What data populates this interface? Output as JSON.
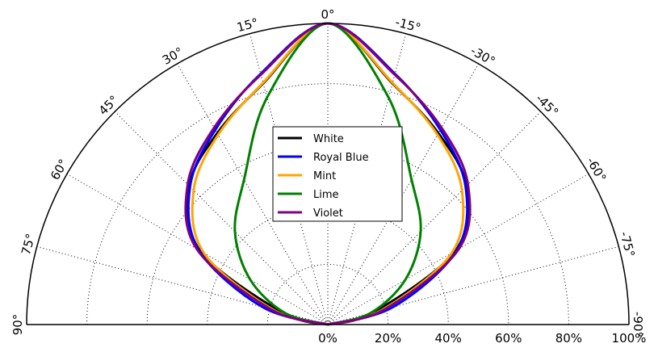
{
  "chart_data": {
    "type": "line",
    "subtype": "polar-half",
    "title": "",
    "angle_unit": "deg",
    "radius_unit": "percent",
    "rlim": [
      0,
      100
    ],
    "theta_range": [
      -90,
      90
    ],
    "grid": true,
    "legend_position": "center",
    "angle_ticks": [
      {
        "value": -90,
        "label": "-90°"
      },
      {
        "value": -75,
        "label": "-75°"
      },
      {
        "value": -60,
        "label": "-60°"
      },
      {
        "value": -45,
        "label": "-45°"
      },
      {
        "value": -30,
        "label": "-30°"
      },
      {
        "value": -15,
        "label": "-15°"
      },
      {
        "value": 0,
        "label": "0°"
      },
      {
        "value": 15,
        "label": "15°"
      },
      {
        "value": 30,
        "label": "30°"
      },
      {
        "value": 45,
        "label": "45°"
      },
      {
        "value": 60,
        "label": "60°"
      },
      {
        "value": 75,
        "label": "75°"
      },
      {
        "value": 90,
        "label": "90°"
      }
    ],
    "radial_ticks": [
      {
        "value": 0,
        "label": "0%"
      },
      {
        "value": 20,
        "label": "20%"
      },
      {
        "value": 40,
        "label": "40%"
      },
      {
        "value": 60,
        "label": "60%"
      },
      {
        "value": 80,
        "label": "80%"
      },
      {
        "value": 100,
        "label": "100%"
      }
    ],
    "angles": [
      -90,
      -75,
      -60,
      -45,
      -30,
      -15,
      0,
      15,
      30,
      45,
      60,
      75,
      90
    ],
    "series": [
      {
        "name": "White",
        "color": "#000000",
        "values": [
          0,
          15.8,
          48.9,
          65.0,
          73.4,
          82.9,
          100,
          82.9,
          73.4,
          65.0,
          48.9,
          15.8,
          0
        ]
      },
      {
        "name": "Royal Blue",
        "color": "#0000ff",
        "values": [
          0,
          22.4,
          49.5,
          64.7,
          74.7,
          86.2,
          100,
          86.2,
          74.7,
          64.7,
          49.5,
          22.4,
          0
        ]
      },
      {
        "name": "Mint",
        "color": "#ffa500",
        "values": [
          0,
          18.5,
          47.5,
          63.0,
          72.8,
          83.1,
          100,
          83.1,
          72.8,
          63.0,
          47.5,
          18.5,
          0
        ]
      },
      {
        "name": "Lime",
        "color": "#008000",
        "values": [
          0,
          14.6,
          29.7,
          43.6,
          55.6,
          78.0,
          100,
          78.0,
          55.6,
          43.6,
          29.7,
          14.6,
          0
        ]
      },
      {
        "name": "Violet",
        "color": "#800080",
        "values": [
          0,
          19.6,
          50.3,
          65.8,
          75.5,
          85.9,
          100,
          85.9,
          75.5,
          65.8,
          50.3,
          19.6,
          0
        ]
      }
    ]
  }
}
